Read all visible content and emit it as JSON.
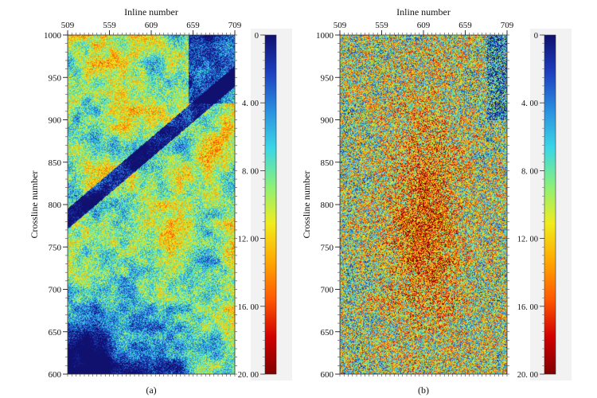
{
  "chart_data": [
    {
      "type": "heatmap",
      "panel_label": "(a)",
      "xlabel": "Inline number",
      "ylabel": "Crossline number",
      "x_ticks": [
        "509",
        "559",
        "609",
        "659",
        "709"
      ],
      "y_ticks": [
        "1000",
        "950",
        "900",
        "850",
        "800",
        "750",
        "700",
        "650",
        "600"
      ],
      "xlim": [
        509,
        709
      ],
      "ylim": [
        600,
        1000
      ],
      "grid": false,
      "colorbar": {
        "tick_labels": [
          "0",
          "4. 00",
          "8. 00",
          "12. 00",
          "16. 00",
          "20. 00"
        ],
        "range": [
          0,
          20
        ],
        "orientation": "vertical",
        "placement": "right"
      },
      "colormap": [
        "#800000",
        "#d10000",
        "#ff5a00",
        "#ffa800",
        "#f0ec1e",
        "#8af07a",
        "#3ad6e6",
        "#2a8fe0",
        "#1d3fbf",
        "#10106f"
      ]
    },
    {
      "type": "heatmap",
      "panel_label": "(b)",
      "xlabel": "Inline number",
      "ylabel": "Crossline number",
      "x_ticks": [
        "509",
        "559",
        "609",
        "659",
        "709"
      ],
      "y_ticks": [
        "1000",
        "950",
        "900",
        "850",
        "800",
        "750",
        "700",
        "650",
        "600"
      ],
      "xlim": [
        509,
        709
      ],
      "ylim": [
        600,
        1000
      ],
      "grid": false,
      "colorbar": {
        "tick_labels": [
          "0",
          "4. 00",
          "8. 00",
          "12. 00",
          "16. 00",
          "20. 00"
        ],
        "range": [
          0,
          20
        ],
        "orientation": "vertical",
        "placement": "right"
      },
      "colormap": [
        "#800000",
        "#d10000",
        "#ff5a00",
        "#ffa800",
        "#f0ec1e",
        "#8af07a",
        "#3ad6e6",
        "#2a8fe0",
        "#1d3fbf",
        "#10106f"
      ]
    }
  ]
}
